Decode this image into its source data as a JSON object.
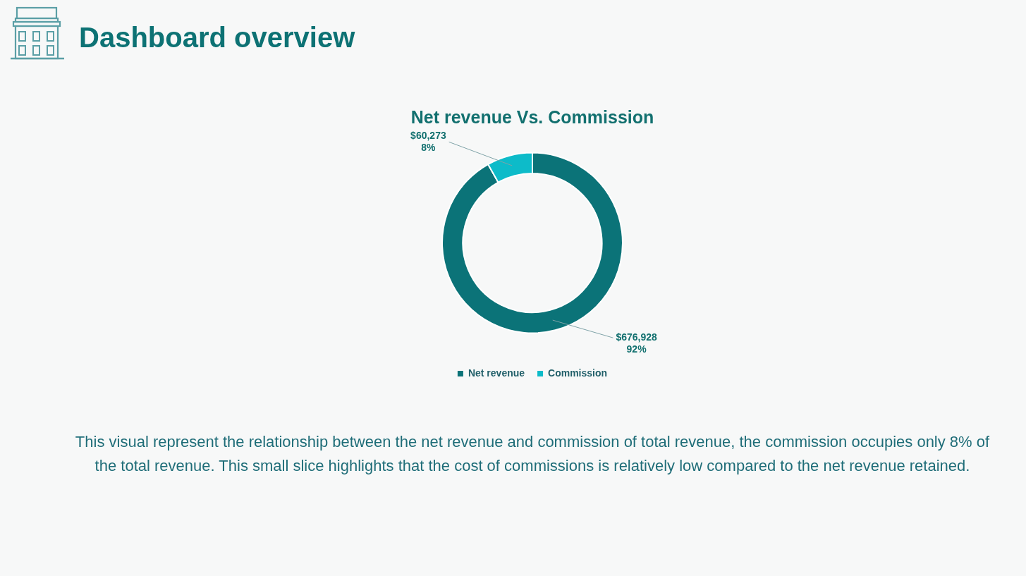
{
  "chart_data": {
    "type": "donut",
    "title": "Dashboard overview",
    "subtitle": "Net revenue Vs. Commission",
    "categories": [
      "Net revenue",
      "Commission"
    ],
    "values": [
      676928,
      60273
    ],
    "colors": [
      "#0b7378",
      "#0dbbc9"
    ],
    "value_labels": [
      "$676,928\n92%",
      "$60,273\n8%"
    ],
    "legend": "bottom",
    "annotations": [
      "This visual represent the relationship between the net revenue and commission of total revenue, the commission occupies only 8% of the total revenue. This small slice highlights that the cost of commissions is relatively low compared to the net revenue retained."
    ]
  }
}
